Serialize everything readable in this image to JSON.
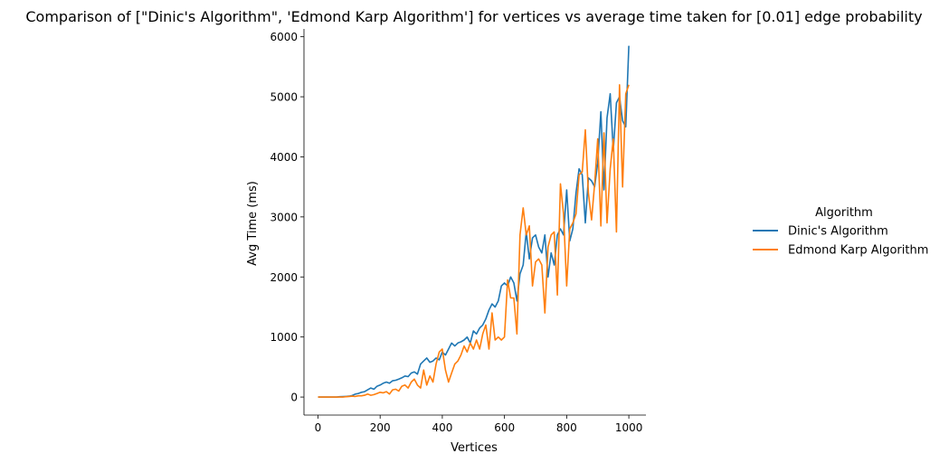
{
  "chart_data": {
    "type": "line",
    "title": "Comparison of [\"Dinic's Algorithm\", 'Edmond Karp Algorithm'] for vertices vs average time taken for [0.01] edge probability",
    "xlabel": "Vertices",
    "ylabel": "Avg Time (ms)",
    "xlim": [
      -45,
      1055
    ],
    "ylim": [
      -300,
      6130
    ],
    "xticks": [
      0,
      200,
      400,
      600,
      800,
      1000
    ],
    "yticks": [
      0,
      1000,
      2000,
      3000,
      4000,
      5000,
      6000
    ],
    "grid": false,
    "legend": {
      "title": "Algorithm",
      "placement": "right-outside"
    },
    "x": [
      0,
      10,
      20,
      30,
      40,
      50,
      60,
      70,
      80,
      90,
      100,
      110,
      120,
      130,
      140,
      150,
      160,
      170,
      180,
      190,
      200,
      210,
      220,
      230,
      240,
      250,
      260,
      270,
      280,
      290,
      300,
      310,
      320,
      330,
      340,
      350,
      360,
      370,
      380,
      390,
      400,
      410,
      420,
      430,
      440,
      450,
      460,
      470,
      480,
      490,
      500,
      510,
      520,
      530,
      540,
      550,
      560,
      570,
      580,
      590,
      600,
      610,
      620,
      630,
      640,
      650,
      660,
      670,
      680,
      690,
      700,
      710,
      720,
      730,
      740,
      750,
      760,
      770,
      780,
      790,
      800,
      810,
      820,
      830,
      840,
      850,
      860,
      870,
      880,
      890,
      900,
      910,
      920,
      930,
      940,
      950,
      960,
      970,
      980,
      990,
      1000
    ],
    "series": [
      {
        "name": "Dinic's Algorithm",
        "color": "#1f77b4",
        "values": [
          0,
          0,
          0,
          0,
          0,
          0,
          0,
          5,
          8,
          10,
          15,
          25,
          50,
          60,
          80,
          90,
          120,
          150,
          130,
          180,
          200,
          230,
          250,
          230,
          270,
          280,
          300,
          320,
          350,
          340,
          400,
          420,
          380,
          550,
          600,
          650,
          580,
          600,
          650,
          620,
          750,
          700,
          800,
          900,
          850,
          900,
          920,
          950,
          1000,
          900,
          1100,
          1050,
          1150,
          1200,
          1300,
          1450,
          1550,
          1500,
          1600,
          1850,
          1900,
          1850,
          2000,
          1900,
          1600,
          2050,
          2200,
          2750,
          2300,
          2650,
          2700,
          2500,
          2400,
          2700,
          2000,
          2400,
          2200,
          2700,
          2800,
          2700,
          3450,
          2600,
          2800,
          3400,
          3800,
          3700,
          2900,
          3650,
          3600,
          3500,
          3900,
          4750,
          3450,
          4650,
          5050,
          4100,
          4900,
          5000,
          4600,
          4500,
          5850
        ]
      },
      {
        "name": "Edmond Karp Algorithm",
        "color": "#ff7f0e",
        "values": [
          0,
          0,
          0,
          0,
          0,
          0,
          0,
          0,
          0,
          5,
          10,
          15,
          10,
          20,
          20,
          30,
          50,
          30,
          40,
          60,
          80,
          70,
          90,
          50,
          120,
          130,
          100,
          180,
          200,
          150,
          250,
          300,
          200,
          150,
          450,
          200,
          350,
          250,
          550,
          750,
          800,
          450,
          250,
          400,
          550,
          600,
          700,
          850,
          750,
          900,
          800,
          950,
          800,
          1050,
          1200,
          800,
          1400,
          950,
          1000,
          950,
          1000,
          1950,
          1650,
          1650,
          1050,
          2700,
          3150,
          2700,
          2850,
          1850,
          2250,
          2300,
          2200,
          1400,
          2500,
          2700,
          2750,
          1700,
          3550,
          3050,
          1850,
          2800,
          2900,
          3050,
          3700,
          3750,
          4450,
          3400,
          2950,
          3550,
          4300,
          2850,
          4400,
          2900,
          3800,
          4300,
          2750,
          5200,
          3500,
          5050,
          5200
        ]
      }
    ]
  }
}
